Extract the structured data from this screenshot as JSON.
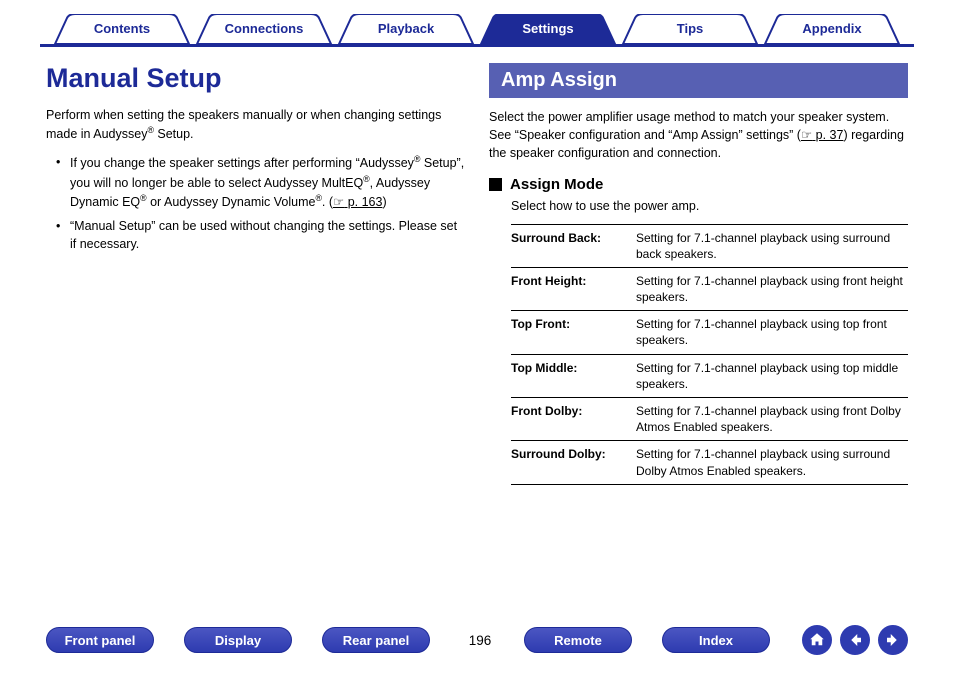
{
  "colors": {
    "primary": "#1d2a97",
    "section_bar": "#5760b3",
    "pill_bg": "#2e3bb0",
    "text": "#000000",
    "bg": "#ffffff"
  },
  "tabs": [
    {
      "label": "Contents",
      "active": false
    },
    {
      "label": "Connections",
      "active": false
    },
    {
      "label": "Playback",
      "active": false
    },
    {
      "label": "Settings",
      "active": true
    },
    {
      "label": "Tips",
      "active": false
    },
    {
      "label": "Appendix",
      "active": false
    }
  ],
  "left": {
    "title": "Manual Setup",
    "intro_parts": [
      "Perform when setting the speakers manually or when changing settings made in Audyssey",
      "®",
      " Setup."
    ],
    "bullets": [
      {
        "parts": [
          "If you change the speaker settings after performing “Audyssey",
          "®",
          " Setup”, you will no longer be able to select Audyssey MultEQ",
          "®",
          ", Audyssey Dynamic EQ",
          "®",
          " or Audyssey Dynamic Volume",
          "®",
          ".  ("
        ],
        "xref": "p. 163",
        "tail": ")"
      },
      {
        "parts": [
          "“Manual Setup” can be used without changing the settings. Please set if necessary."
        ]
      }
    ]
  },
  "right": {
    "section_title": "Amp Assign",
    "intro_line1": "Select the power amplifier usage method to match your speaker system.",
    "intro_line2_pre": "See “Speaker configuration and “Amp Assign” settings”  (",
    "intro_line2_xref": "p. 37",
    "intro_line2_post": ") regarding the speaker configuration and connection.",
    "sub_title": "Assign Mode",
    "sub_intro": "Select how to use the power amp.",
    "table": [
      {
        "k": "Surround Back:",
        "v": "Setting for 7.1-channel playback using surround back speakers."
      },
      {
        "k": "Front Height:",
        "v": "Setting for 7.1-channel playback using front height speakers."
      },
      {
        "k": "Top Front:",
        "v": "Setting for 7.1-channel playback using top front speakers."
      },
      {
        "k": "Top Middle:",
        "v": "Setting for 7.1-channel playback using top middle speakers."
      },
      {
        "k": "Front Dolby:",
        "v": "Setting for 7.1-channel playback using front Dolby Atmos Enabled speakers."
      },
      {
        "k": "Surround Dolby:",
        "v": "Setting for 7.1-channel playback using surround Dolby Atmos Enabled speakers."
      }
    ]
  },
  "bottom": {
    "buttons": [
      "Front panel",
      "Display",
      "Rear panel"
    ],
    "page": "196",
    "buttons2": [
      "Remote",
      "Index"
    ]
  }
}
